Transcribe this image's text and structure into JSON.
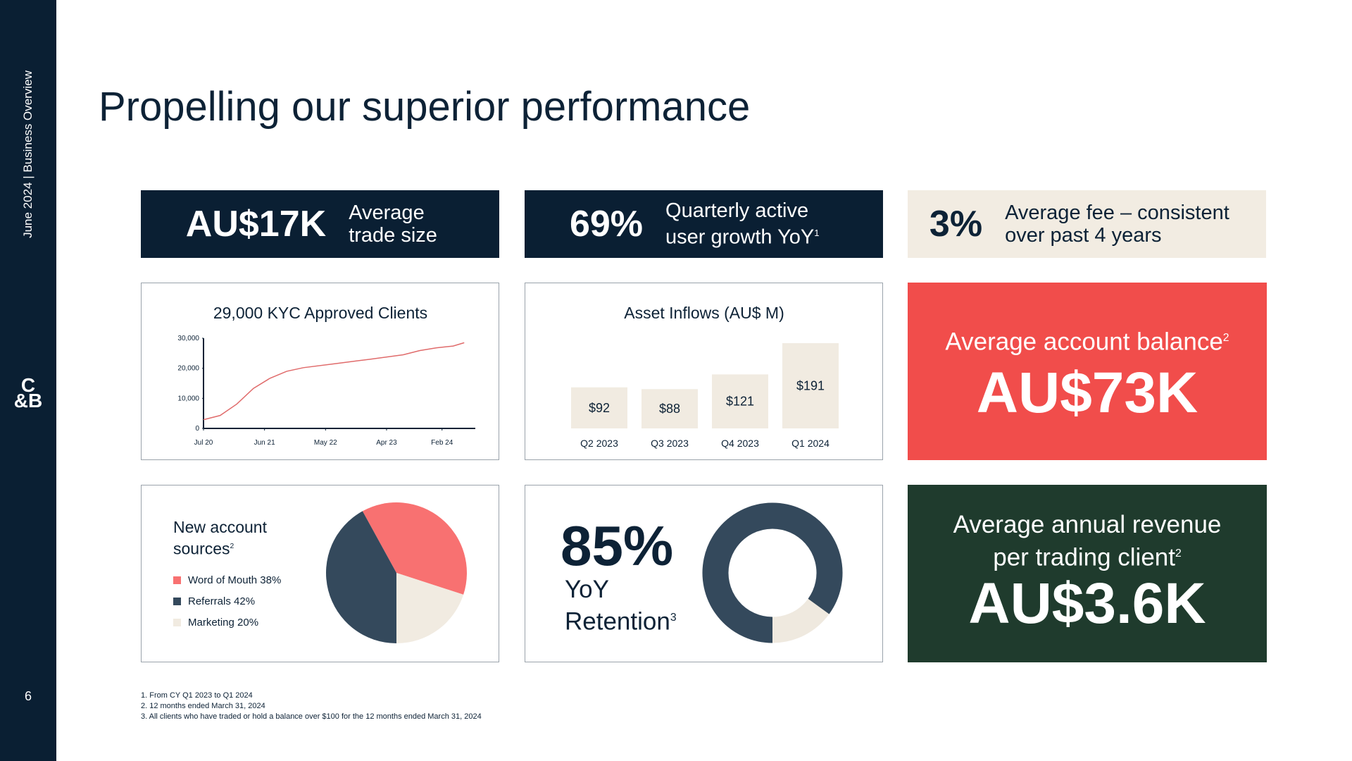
{
  "sidebar": {
    "header": "June 2024 | Business Overview",
    "logo_top": "C",
    "logo_bottom": "&B",
    "page": "6"
  },
  "title": "Propelling our superior performance",
  "kpis": [
    {
      "value": "AU$17K",
      "label": "Average trade size"
    },
    {
      "value": "69%",
      "label": "Quarterly active user growth YoY",
      "note": "1"
    },
    {
      "value": "3%",
      "label": "Average fee – consistent over past 4 years"
    }
  ],
  "cards": [
    {
      "label": "Average account balance",
      "note": "2",
      "value": "AU$73K"
    },
    {
      "label": "Average annual revenue per trading client",
      "note": "2",
      "value": "AU$3.6K"
    }
  ],
  "chart_data": [
    {
      "type": "line",
      "title": "29,000 KYC Approved Clients",
      "color": "#e06b6b",
      "x": [
        "2020-07",
        "2020-10",
        "2021-01",
        "2021-04",
        "2021-07",
        "2021-10",
        "2022-01",
        "2022-07",
        "2023-01",
        "2023-07",
        "2023-10",
        "2024-01",
        "2024-04",
        "2024-06"
      ],
      "values": [
        2900,
        4300,
        8100,
        13300,
        16700,
        19000,
        20200,
        21600,
        23000,
        24500,
        25900,
        26800,
        27400,
        28500
      ],
      "xlim": [
        "2020-07",
        "2024-08"
      ],
      "xticks": [
        {
          "value": "2020-07",
          "label": "Jul 20"
        },
        {
          "value": "2021-06",
          "label": "Jun 21"
        },
        {
          "value": "2022-05",
          "label": "May 22"
        },
        {
          "value": "2023-04",
          "label": "Apr 23"
        },
        {
          "value": "2024-02",
          "label": "Feb 24"
        }
      ],
      "ylim": [
        0,
        30000
      ],
      "yticks": [
        0,
        {
          "value": 10000,
          "label": "10,000"
        },
        {
          "value": 20000,
          "label": "20,000"
        },
        {
          "value": 30000,
          "label": "30,000"
        }
      ]
    },
    {
      "type": "bar",
      "title": "Asset Inflows (AU$ M)",
      "color": "#f1ebe1",
      "categories": [
        "Q2 2023",
        "Q3 2023",
        "Q4 2023",
        "Q1 2024"
      ],
      "values": [
        92,
        88,
        121,
        191
      ],
      "value_labels": [
        "$92",
        "$88",
        "$121",
        "$191"
      ]
    },
    {
      "type": "pie",
      "title": "New account sources",
      "title_note": "2",
      "categories": [
        "Word of Mouth 38%",
        "Referrals 42%",
        "Marketing 20%"
      ],
      "values": [
        38,
        42,
        20
      ],
      "colors": [
        "#f87171",
        "#34495c",
        "#f1ebe1"
      ]
    },
    {
      "type": "donut",
      "values": [
        85
      ],
      "value_labels": [
        "85%"
      ],
      "label": "YoY Retention",
      "label_note": "3",
      "color": "#34495c",
      "track_color": "#efe9df"
    }
  ],
  "footnotes": [
    "1. From CY Q1 2023 to Q1 2024",
    "2. 12 months ended March 31, 2024",
    "3. All clients who have traded or hold a balance over $100 for the 12 months ended March 31, 2024"
  ]
}
